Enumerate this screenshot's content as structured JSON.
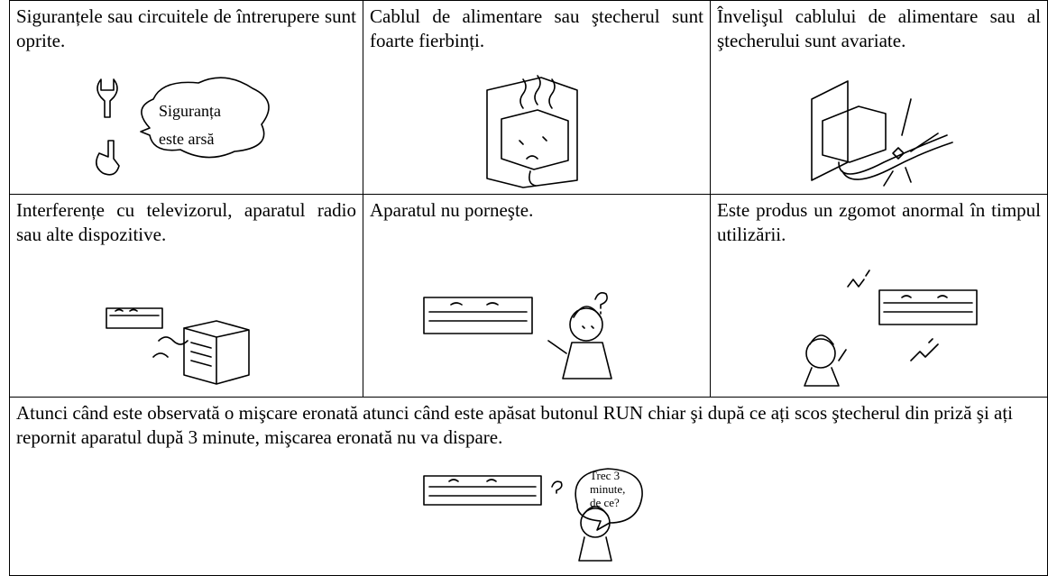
{
  "table": {
    "rows": [
      [
        {
          "text": "Siguranțele sau circuitele de întrerupere sunt oprite.",
          "bubble": [
            "Siguranța",
            "este arsă"
          ]
        },
        {
          "text": "Cablul de alimentare sau ştecherul sunt foarte fierbinți."
        },
        {
          "text": "Învelişul cablului de alimentare sau al ştecherului sunt avariate."
        }
      ],
      [
        {
          "text": "Interferențe cu televizorul, aparatul radio sau alte dispozitive."
        },
        {
          "text": "Aparatul nu porneşte."
        },
        {
          "text": "Este produs un zgomot anormal în timpul utilizării."
        }
      ],
      [
        {
          "text": "Atunci când este observată o mişcare eronată atunci când este apăsat butonul RUN chiar şi după ce ați scos ştecherul din priză şi ați repornit aparatul după 3 minute, mişcarea eronată nu va dispare.",
          "bubble": [
            "Trec 3",
            "minute,",
            "de ce?"
          ]
        }
      ]
    ]
  }
}
